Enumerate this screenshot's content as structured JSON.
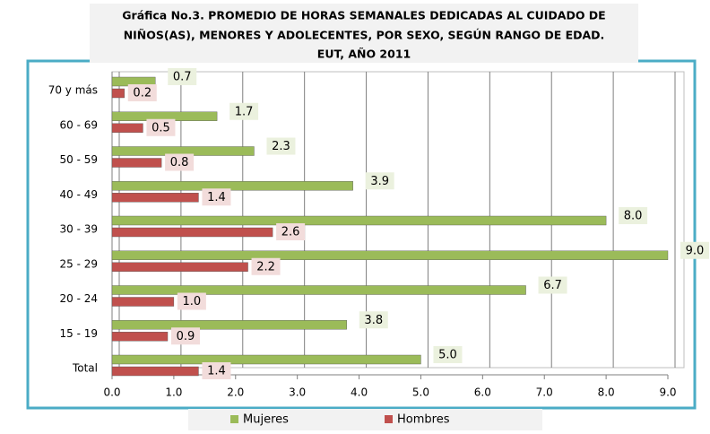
{
  "chart_data": {
    "type": "bar",
    "orientation": "horizontal",
    "title": [
      "Gráfica No.3. PROMEDIO DE HORAS SEMANALES DEDICADAS AL CUIDADO DE",
      "NIÑOS(AS), MENORES Y ADOLECENTES,  POR SEXO, SEGÚN RANGO DE EDAD.",
      "EUT, AÑO 2011"
    ],
    "categories": [
      "70 y más",
      "60 - 69",
      "50 - 59",
      "40 - 49",
      "30 - 39",
      "25 - 29",
      "20 - 24",
      "15 - 19",
      "Total"
    ],
    "series": [
      {
        "name": "Mujeres",
        "color": "#9bbb59",
        "values": [
          0.7,
          1.7,
          2.3,
          3.9,
          8.0,
          9.0,
          6.7,
          3.8,
          5.0
        ],
        "value_labels": [
          "0.7",
          "1.7",
          "2.3",
          "3.9",
          "8.0",
          "9.0",
          "6.7",
          "3.8",
          "5.0"
        ]
      },
      {
        "name": "Hombres",
        "color": "#c0504d",
        "values": [
          0.2,
          0.5,
          0.8,
          1.4,
          2.6,
          2.2,
          1.0,
          0.9,
          1.4
        ],
        "value_labels": [
          "0.2",
          "0.5",
          "0.8",
          "1.4",
          "2.6",
          "2.2",
          "1.0",
          "0.9",
          "1.4"
        ]
      }
    ],
    "xlim": [
      0,
      9
    ],
    "xticks": [
      {
        "value": 0,
        "label": "0.0"
      },
      {
        "value": 1,
        "label": "1.0"
      },
      {
        "value": 2,
        "label": "2.0"
      },
      {
        "value": 3,
        "label": "3.0"
      },
      {
        "value": 4,
        "label": "4.0"
      },
      {
        "value": 5,
        "label": "5.0"
      },
      {
        "value": 6,
        "label": "6.0"
      },
      {
        "value": 7,
        "label": "7.0"
      },
      {
        "value": 8,
        "label": "8.0"
      },
      {
        "value": 9,
        "label": "9.0"
      }
    ],
    "grid": true,
    "legend": "bottom"
  }
}
